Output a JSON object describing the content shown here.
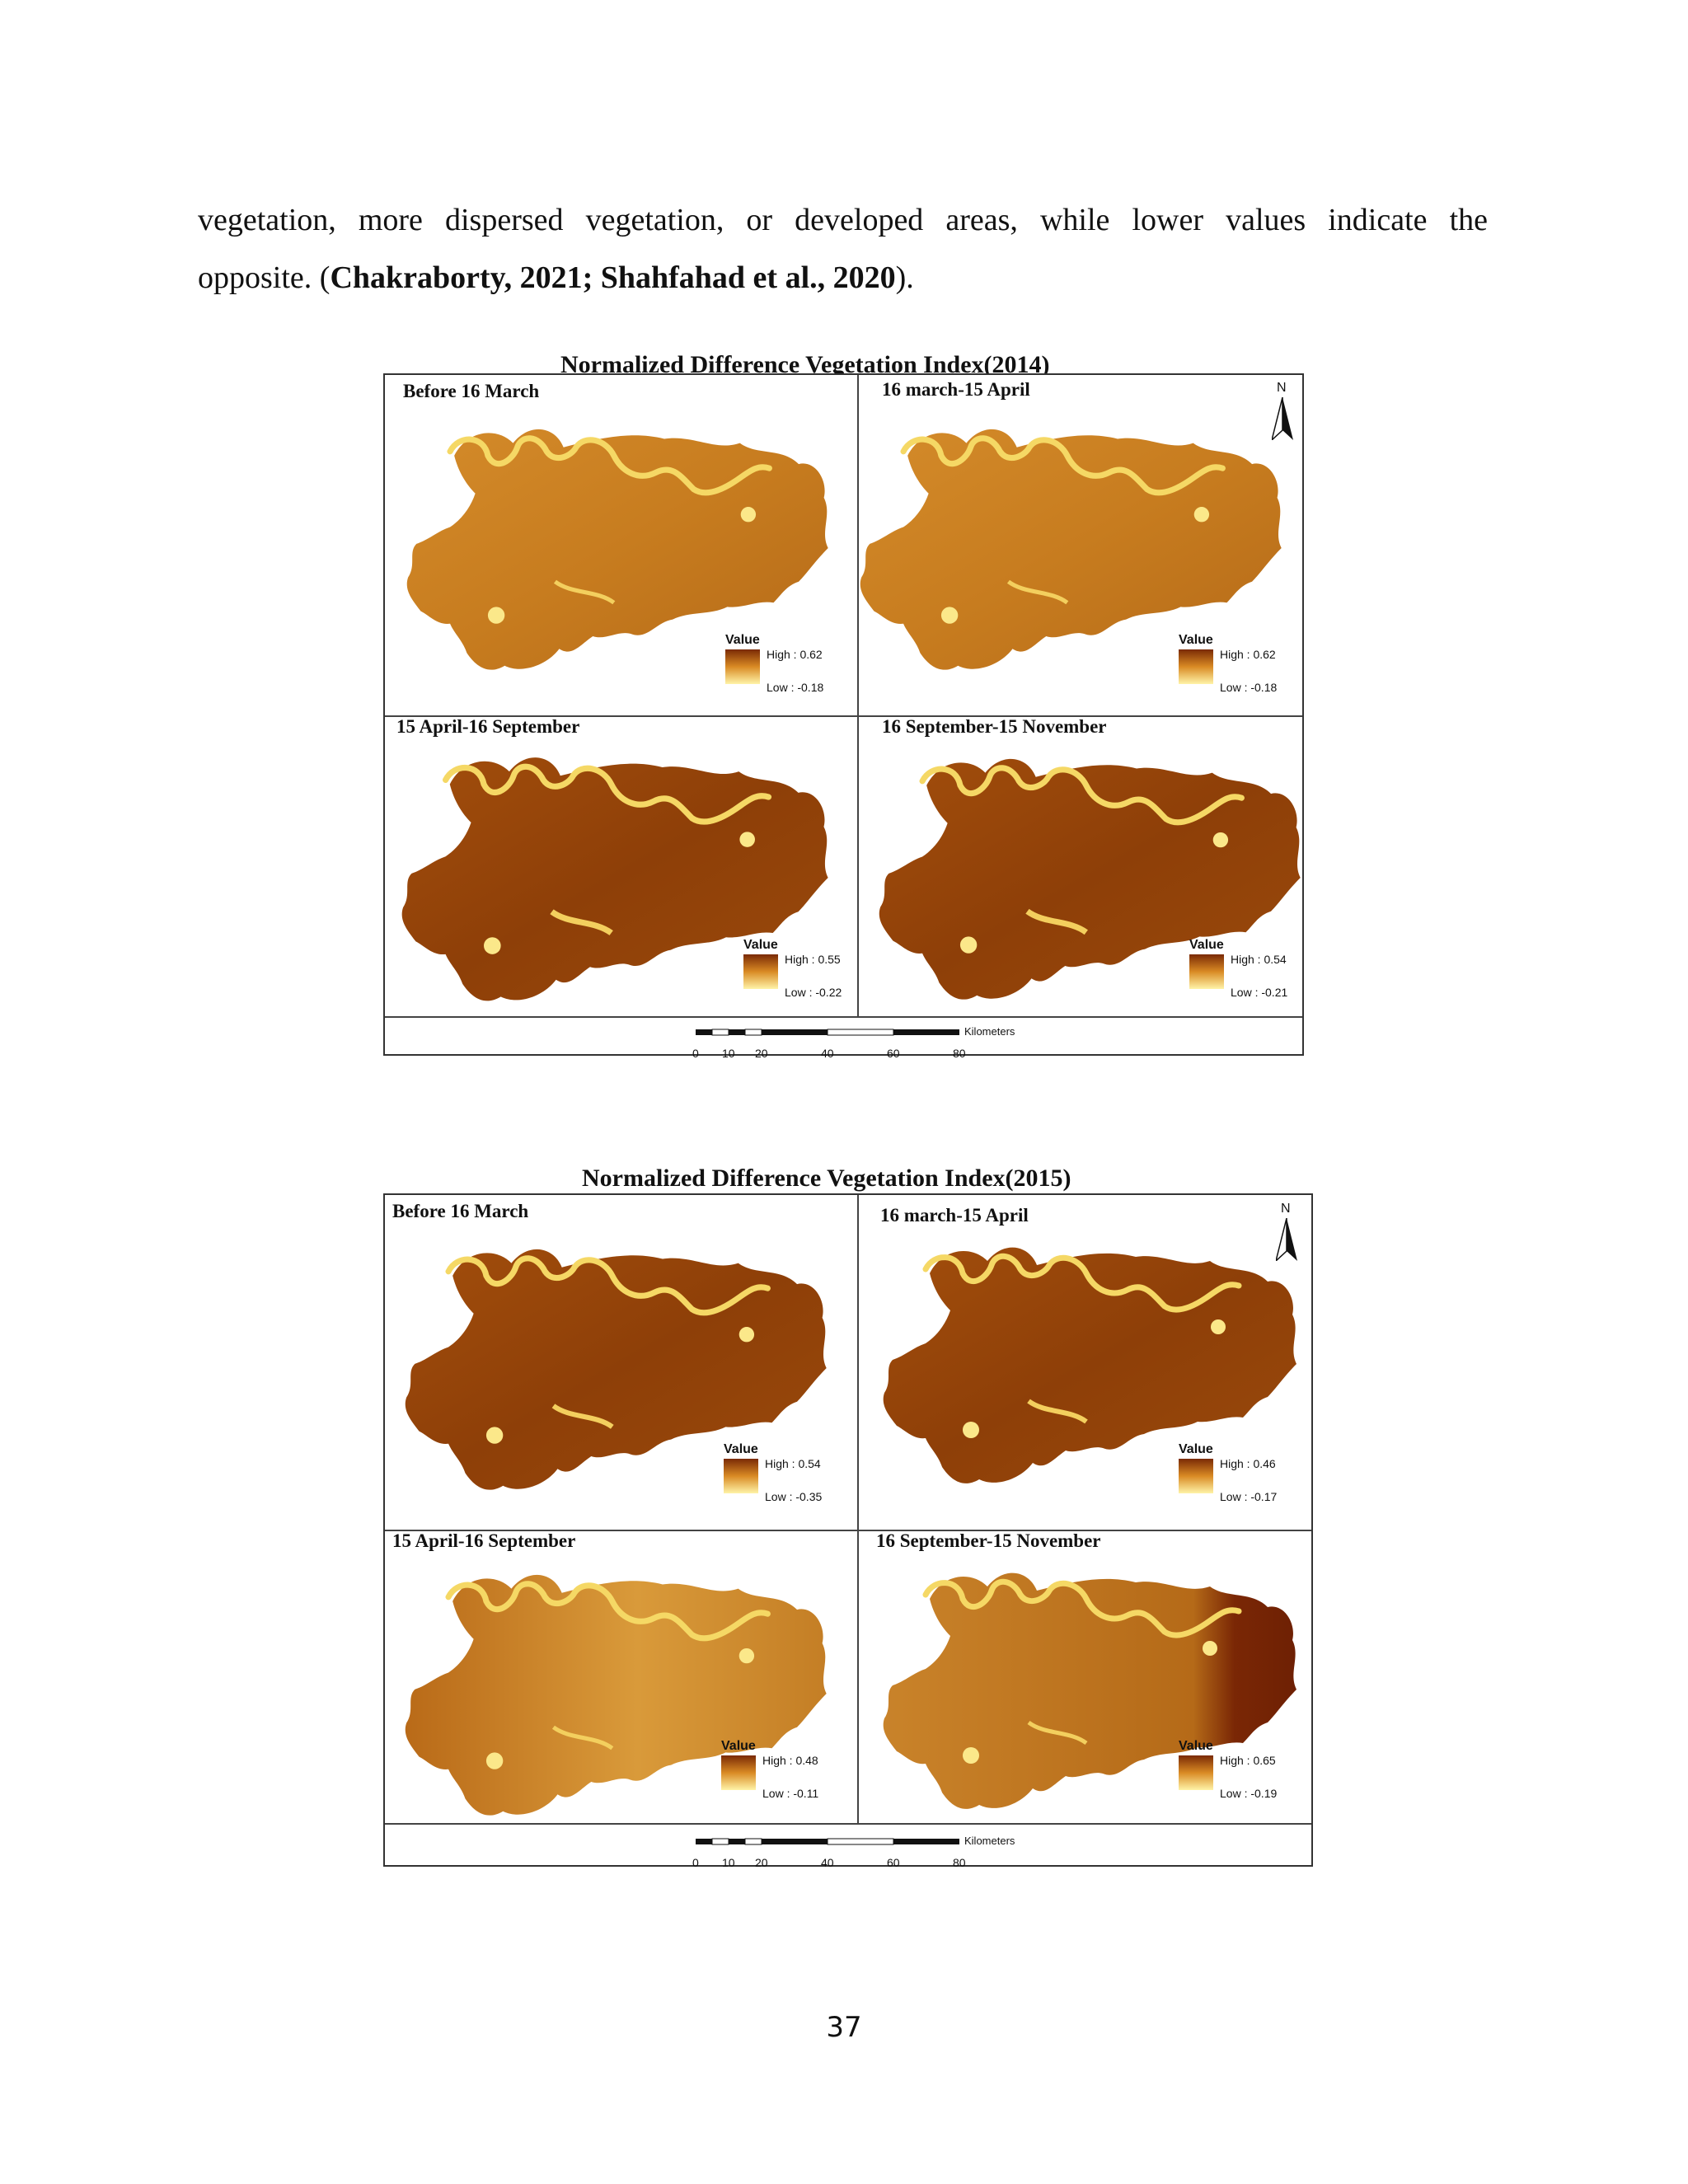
{
  "paragraph": {
    "line1": "vegetation, more dispersed vegetation, or developed areas, while lower values indicate the",
    "line2_start": "opposite. (",
    "citation": "Chakraborty, 2021; Shahfahad et al., 2020",
    "line2_end": ")."
  },
  "figures": [
    {
      "title": "Normalized Difference Vegetation Index(2014)",
      "north_label": "N",
      "legend_title": "Value",
      "panels": [
        {
          "label": "Before 16 March",
          "high": "High : 0.62",
          "low": "Low : -0.18"
        },
        {
          "label": "16 march-15 April",
          "high": "High : 0.62",
          "low": "Low : -0.18"
        },
        {
          "label": "15 April-16 September",
          "high": "High : 0.55",
          "low": "Low : -0.22"
        },
        {
          "label": "16 September-15 November",
          "high": "High : 0.54",
          "low": "Low : -0.21"
        }
      ],
      "scale_ticks": [
        "0",
        "10",
        "20",
        "40",
        "60",
        "80"
      ],
      "scale_unit": "Kilometers"
    },
    {
      "title": "Normalized Difference Vegetation Index(2015)",
      "north_label": "N",
      "legend_title": "Value",
      "panels": [
        {
          "label": "Before 16 March",
          "high": "High : 0.54",
          "low": "Low : -0.35"
        },
        {
          "label": "16 march-15 April",
          "high": "High : 0.46",
          "low": "Low : -0.17"
        },
        {
          "label": "15 April-16 September",
          "high": "High : 0.48",
          "low": "Low : -0.11"
        },
        {
          "label": "16 September-15 November",
          "high": "High : 0.65",
          "low": "Low : -0.19"
        }
      ],
      "scale_ticks": [
        "0",
        "10",
        "20",
        "40",
        "60",
        "80"
      ],
      "scale_unit": "Kilometers"
    }
  ],
  "colors": {
    "map_high": "#7a2a05",
    "map_mid": "#c07418",
    "map_low": "#fbe88a",
    "river": "#f5d865"
  },
  "page_number": "37"
}
